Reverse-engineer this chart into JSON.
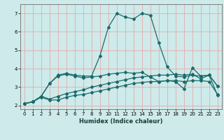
{
  "xlabel": "Humidex (Indice chaleur)",
  "bg_color": "#ceeaea",
  "grid_color": "#e8aaaa",
  "line_color": "#1a6b6b",
  "xlim": [
    -0.5,
    23.5
  ],
  "ylim": [
    1.8,
    7.5
  ],
  "xticks": [
    0,
    1,
    2,
    3,
    4,
    5,
    6,
    7,
    8,
    9,
    10,
    11,
    12,
    13,
    14,
    15,
    16,
    17,
    18,
    19,
    20,
    21,
    22,
    23
  ],
  "yticks": [
    2,
    3,
    4,
    5,
    6,
    7
  ],
  "line1_x": [
    0,
    1,
    2,
    3,
    4,
    5,
    6,
    7,
    8,
    9,
    10,
    11,
    12,
    13,
    14,
    15,
    16,
    17,
    18,
    19,
    20,
    21,
    22,
    23
  ],
  "line1_y": [
    2.1,
    2.2,
    2.45,
    2.3,
    2.3,
    2.45,
    2.55,
    2.6,
    2.7,
    2.8,
    2.9,
    3.0,
    3.1,
    3.2,
    3.25,
    3.3,
    3.3,
    3.35,
    3.35,
    3.3,
    3.35,
    3.35,
    3.3,
    2.6
  ],
  "line2_x": [
    0,
    1,
    2,
    3,
    4,
    5,
    6,
    7,
    8,
    9,
    10,
    11,
    12,
    13,
    14,
    15,
    16,
    17,
    18,
    19,
    20,
    21,
    22,
    23
  ],
  "line2_y": [
    2.1,
    2.2,
    2.5,
    2.35,
    2.5,
    2.65,
    2.75,
    2.85,
    3.0,
    3.1,
    3.2,
    3.3,
    3.4,
    3.5,
    3.55,
    3.6,
    3.65,
    3.65,
    3.7,
    3.65,
    3.7,
    3.45,
    3.65,
    3.05
  ],
  "line3_x": [
    0,
    1,
    2,
    3,
    4,
    5,
    6,
    7,
    8,
    9,
    10,
    11,
    12,
    13,
    14,
    15,
    16,
    17,
    18,
    19,
    20,
    21,
    22,
    23
  ],
  "line3_y": [
    2.1,
    2.2,
    2.5,
    3.2,
    3.6,
    3.7,
    3.6,
    3.5,
    3.55,
    3.6,
    3.7,
    3.75,
    3.8,
    3.75,
    3.8,
    3.55,
    3.3,
    3.35,
    3.3,
    2.9,
    4.05,
    3.6,
    3.65,
    3.05
  ],
  "line4_x": [
    0,
    1,
    2,
    3,
    4,
    5,
    6,
    7,
    8,
    9,
    10,
    11,
    12,
    13,
    14,
    15,
    16,
    17,
    18,
    19,
    20,
    21,
    22,
    23
  ],
  "line4_y": [
    2.1,
    2.2,
    2.5,
    3.2,
    3.65,
    3.75,
    3.65,
    3.6,
    3.6,
    4.7,
    6.25,
    7.0,
    6.8,
    6.7,
    7.0,
    6.9,
    5.4,
    4.1,
    3.6,
    3.55,
    3.65,
    3.6,
    3.65,
    2.55
  ],
  "markersize": 2.0,
  "linewidth": 0.9
}
